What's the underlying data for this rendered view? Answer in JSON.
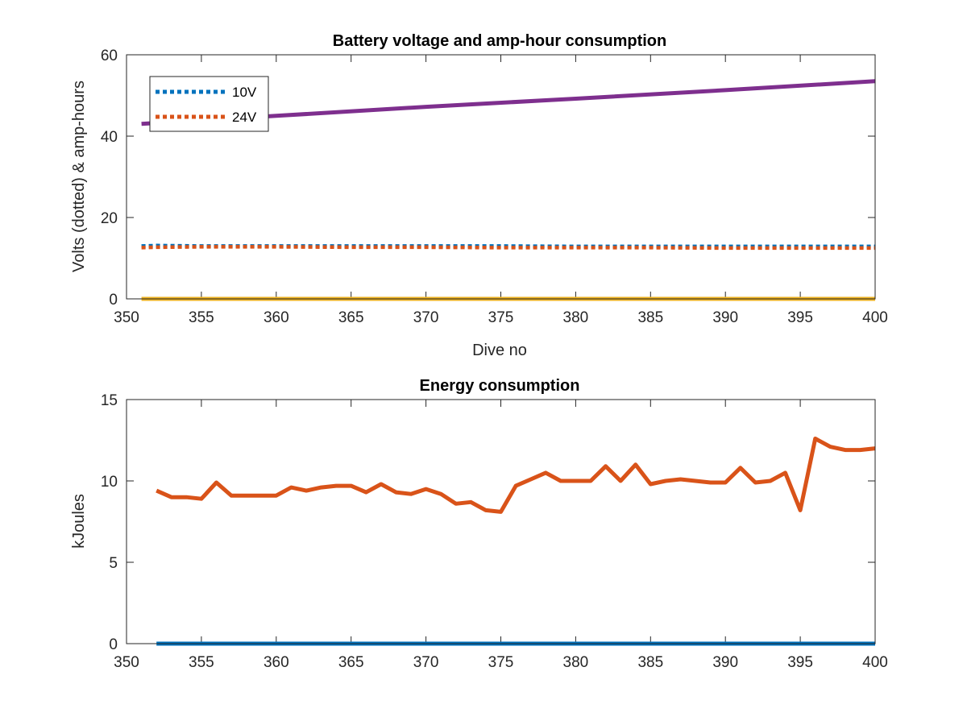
{
  "chart_data": [
    {
      "type": "line",
      "title": "Battery voltage and amp-hour consumption",
      "xlabel": "Dive no",
      "ylabel": "Volts (dotted) & amp-hours",
      "xlim": [
        350,
        400
      ],
      "ylim": [
        0,
        60
      ],
      "xticks": [
        "350",
        "355",
        "360",
        "365",
        "370",
        "375",
        "380",
        "385",
        "390",
        "395",
        "400"
      ],
      "yticks": [
        "0",
        "20",
        "40",
        "60"
      ],
      "legend": {
        "placement": "top-left"
      },
      "series": [
        {
          "name": "10V",
          "style": "dotted",
          "color": "#0072BD",
          "in_legend": true,
          "x": [
            351,
            352,
            355,
            360,
            365,
            370,
            375,
            380,
            385,
            390,
            395,
            400
          ],
          "y": [
            13.0,
            13.1,
            13.0,
            13.0,
            13.0,
            13.0,
            13.0,
            12.9,
            12.9,
            12.9,
            12.9,
            12.9
          ]
        },
        {
          "name": "24V",
          "style": "dotted",
          "color": "#D95319",
          "in_legend": true,
          "x": [
            351,
            352,
            355,
            360,
            365,
            370,
            375,
            380,
            385,
            390,
            395,
            400
          ],
          "y": [
            12.6,
            12.7,
            12.8,
            12.8,
            12.7,
            12.7,
            12.6,
            12.6,
            12.6,
            12.5,
            12.5,
            12.5
          ]
        },
        {
          "style": "solid",
          "color": "#EDB120",
          "in_legend": false,
          "x": [
            351,
            400
          ],
          "y": [
            0,
            0
          ]
        },
        {
          "style": "solid",
          "color": "#7E2F8E",
          "in_legend": false,
          "x": [
            351,
            360,
            370,
            380,
            390,
            400
          ],
          "y": [
            43.0,
            45.0,
            47.2,
            49.2,
            51.3,
            53.5
          ]
        }
      ]
    },
    {
      "type": "line",
      "title": "Energy consumption",
      "xlabel": "",
      "ylabel": "kJoules",
      "xlim": [
        350,
        400
      ],
      "ylim": [
        0,
        15
      ],
      "xticks": [
        "350",
        "355",
        "360",
        "365",
        "370",
        "375",
        "380",
        "385",
        "390",
        "395",
        "400"
      ],
      "yticks": [
        "0",
        "5",
        "10",
        "15"
      ],
      "series": [
        {
          "style": "solid",
          "color": "#D95319",
          "x": [
            352,
            353,
            354,
            355,
            356,
            357,
            358,
            359,
            360,
            361,
            362,
            363,
            364,
            365,
            366,
            367,
            368,
            369,
            370,
            371,
            372,
            373,
            374,
            375,
            376,
            377,
            378,
            379,
            380,
            381,
            382,
            383,
            384,
            385,
            386,
            387,
            388,
            389,
            390,
            391,
            392,
            393,
            394,
            395,
            396,
            397,
            398,
            399,
            400
          ],
          "y": [
            9.4,
            9.0,
            9.0,
            8.9,
            9.9,
            9.1,
            9.1,
            9.1,
            9.1,
            9.6,
            9.4,
            9.6,
            9.7,
            9.7,
            9.3,
            9.8,
            9.3,
            9.2,
            9.5,
            9.2,
            8.6,
            8.7,
            8.2,
            8.1,
            9.7,
            10.1,
            10.5,
            10.0,
            10.0,
            10.0,
            10.9,
            10.0,
            11.0,
            9.8,
            10.0,
            10.1,
            10.0,
            9.9,
            9.9,
            10.8,
            9.9,
            10.0,
            10.5,
            8.2,
            12.6,
            12.1,
            11.9,
            11.9,
            12.0
          ]
        },
        {
          "style": "solid",
          "color": "#0072BD",
          "x": [
            352,
            400
          ],
          "y": [
            0,
            0
          ]
        }
      ]
    }
  ]
}
